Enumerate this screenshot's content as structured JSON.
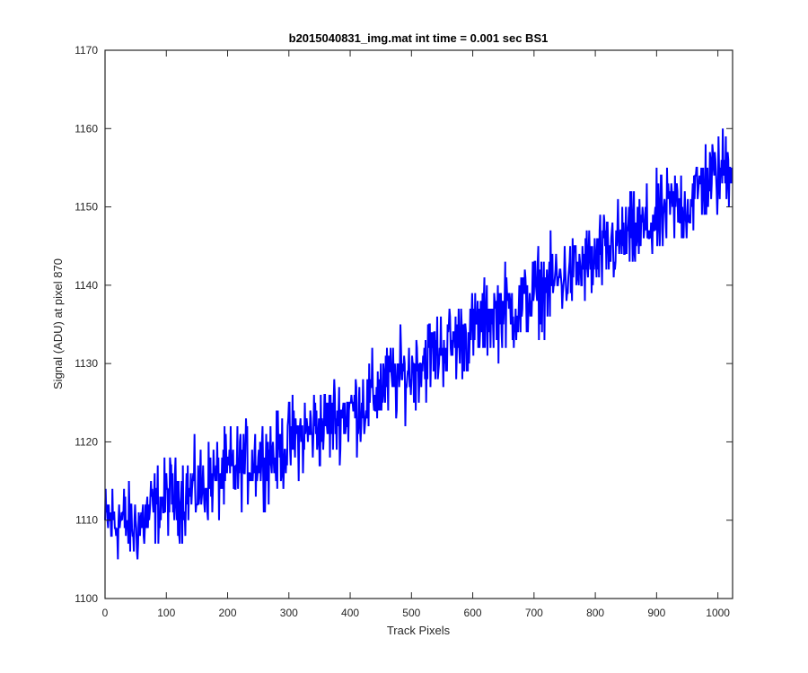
{
  "chart_data": {
    "type": "line",
    "title": "b2015040831_img.mat int time = 0.001 sec   BS1",
    "xlabel": "Track Pixels",
    "ylabel": "Signal (ADU) at pixel 870",
    "xlim": [
      0,
      1024
    ],
    "ylim": [
      1100,
      1170
    ],
    "xticks": [
      0,
      100,
      200,
      300,
      400,
      500,
      600,
      700,
      800,
      900,
      1000
    ],
    "yticks": [
      1100,
      1110,
      1120,
      1130,
      1140,
      1150,
      1160,
      1170
    ],
    "grid": false,
    "legend": "none",
    "series": [
      {
        "color": "#0000ff",
        "x": [
          0,
          25,
          50,
          75,
          100,
          125,
          150,
          175,
          200,
          225,
          250,
          275,
          300,
          325,
          350,
          375,
          400,
          425,
          450,
          475,
          500,
          525,
          550,
          575,
          600,
          625,
          650,
          675,
          700,
          725,
          750,
          775,
          800,
          825,
          850,
          875,
          900,
          925,
          950,
          975,
          1000,
          1023
        ],
        "y": [
          1110,
          1110,
          1109,
          1111,
          1113,
          1113,
          1114,
          1115,
          1116,
          1117,
          1118,
          1118,
          1120,
          1121,
          1122,
          1123,
          1124,
          1125,
          1127,
          1128,
          1129,
          1131,
          1132,
          1133,
          1134,
          1136,
          1137,
          1137,
          1139,
          1140,
          1141,
          1142,
          1143,
          1145,
          1146,
          1147,
          1148,
          1150,
          1150,
          1153,
          1154,
          1156
        ],
        "noise_amplitude": 4
      }
    ]
  }
}
